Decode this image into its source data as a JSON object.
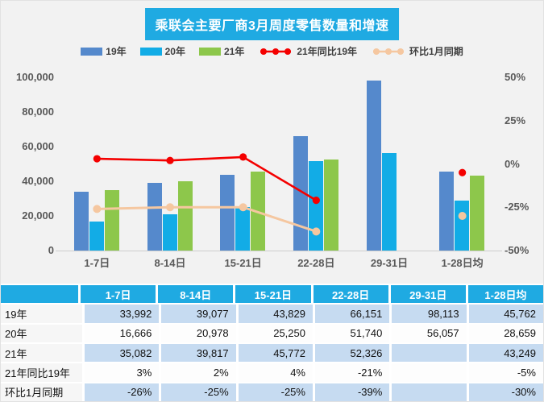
{
  "title": "乘联会主要厂商3月周度零售数量和增速",
  "colors": {
    "title_bg": "#1FAAE2",
    "table_header_bg": "#1FAAE2",
    "table_shaded_row_bg": "#C6DBF1",
    "table_plain_row_bg": "#FDFDFD",
    "bar_19": "#5589CC",
    "bar_20": "#12ACE6",
    "bar_21": "#8DC74B",
    "line_yoy": "#F40000",
    "line_mom": "#F5C7A0",
    "axis_text": "#595959",
    "background": "#F2F2F2"
  },
  "legend": {
    "items": [
      {
        "type": "bar",
        "label": "19年",
        "color": "#5589CC"
      },
      {
        "type": "bar",
        "label": "20年",
        "color": "#12ACE6"
      },
      {
        "type": "bar",
        "label": "21年",
        "color": "#8DC74B"
      },
      {
        "type": "line",
        "label": "21年同比19年",
        "color": "#F40000"
      },
      {
        "type": "line",
        "label": "环比1月同期",
        "color": "#F5C7A0"
      }
    ]
  },
  "chart_data": {
    "type": "bar",
    "subtype": "combo-bar-line",
    "title": "乘联会主要厂商3月周度零售数量和增速",
    "categories": [
      "1-7日",
      "8-14日",
      "15-21日",
      "22-28日",
      "29-31日",
      "1-28日均"
    ],
    "series": [
      {
        "name": "19年",
        "kind": "bar",
        "axis": "left",
        "color": "#5589CC",
        "values": [
          33992,
          39077,
          43829,
          66151,
          98113,
          45762
        ]
      },
      {
        "name": "20年",
        "kind": "bar",
        "axis": "left",
        "color": "#12ACE6",
        "values": [
          16666,
          20978,
          25250,
          51740,
          56057,
          28659
        ]
      },
      {
        "name": "21年",
        "kind": "bar",
        "axis": "left",
        "color": "#8DC74B",
        "values": [
          35082,
          39817,
          45772,
          52326,
          null,
          43249
        ]
      },
      {
        "name": "21年同比19年",
        "kind": "line",
        "axis": "right",
        "color": "#F40000",
        "values": [
          3,
          2,
          4,
          -21,
          null,
          -5
        ]
      },
      {
        "name": "环比1月同期",
        "kind": "line",
        "axis": "right",
        "color": "#F5C7A0",
        "values": [
          -26,
          -25,
          -25,
          -39,
          null,
          -30
        ]
      }
    ],
    "left_axis": {
      "min": 0,
      "max": 100000,
      "ticks": [
        100000,
        80000,
        60000,
        40000,
        20000,
        0
      ],
      "tick_labels": [
        "100,000",
        "80,000",
        "60,000",
        "40,000",
        "20,000",
        "0"
      ]
    },
    "right_axis": {
      "min": -50,
      "max": 50,
      "ticks": [
        50,
        25,
        0,
        -25,
        -50
      ],
      "tick_labels": [
        "50%",
        "25%",
        "0%",
        "-25%",
        "-50%"
      ]
    },
    "grid": false,
    "legend_position": "top"
  },
  "table": {
    "header": [
      "",
      "1-7日",
      "8-14日",
      "15-21日",
      "22-28日",
      "29-31日",
      "1-28日均"
    ],
    "rows": [
      {
        "label": "19年",
        "shaded": true,
        "cells": [
          "33,992",
          "39,077",
          "43,829",
          "66,151",
          "98,113",
          "45,762"
        ]
      },
      {
        "label": "20年",
        "shaded": false,
        "cells": [
          "16,666",
          "20,978",
          "25,250",
          "51,740",
          "56,057",
          "28,659"
        ]
      },
      {
        "label": "21年",
        "shaded": true,
        "cells": [
          "35,082",
          "39,817",
          "45,772",
          "52,326",
          "",
          "43,249"
        ]
      },
      {
        "label": "21年同比19年",
        "shaded": false,
        "cells": [
          "3%",
          "2%",
          "4%",
          "-21%",
          "",
          "-5%"
        ]
      },
      {
        "label": "环比1月同期",
        "shaded": true,
        "cells": [
          "-26%",
          "-25%",
          "-25%",
          "-39%",
          "",
          "-30%"
        ]
      }
    ]
  }
}
